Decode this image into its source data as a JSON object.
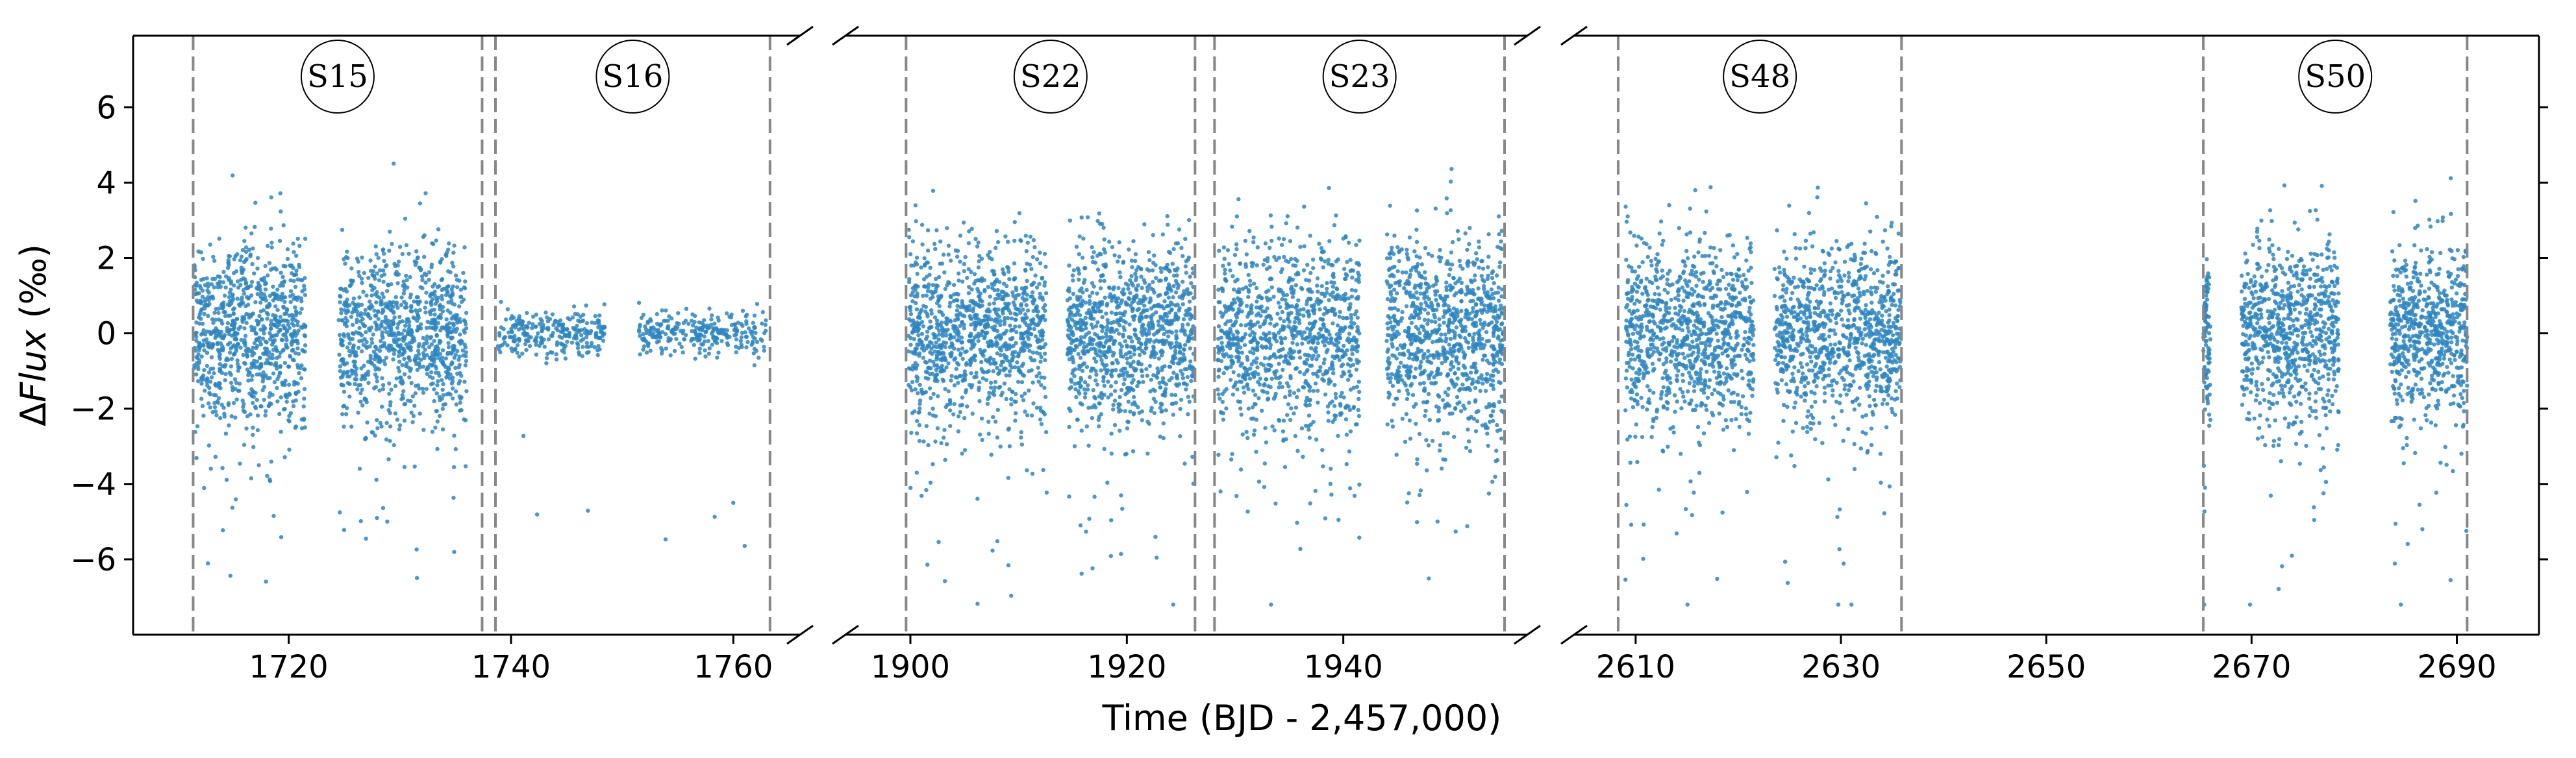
{
  "chart_data": {
    "type": "scatter",
    "title": "",
    "xlabel": "Time (BJD - 2,457,000)",
    "ylabel_prefix": "Δ",
    "ylabel_italic": "Flux",
    "ylabel_suffix": " (‰)",
    "ylim": [
      -8,
      7.9
    ],
    "y_ticks": [
      -6,
      -4,
      -2,
      0,
      2,
      4,
      6
    ],
    "y_tick_labels": [
      "−6",
      "−4",
      "−2",
      "0",
      "2",
      "4",
      "6"
    ],
    "grid": false,
    "legend": "none",
    "marker_color": "#2e86c1",
    "separator_color": "#888888",
    "panels": [
      {
        "xlim": [
          1706,
          1766
        ],
        "x_ticks": [
          1720,
          1740,
          1760
        ],
        "x_tick_labels": [
          "1720",
          "1740",
          "1760"
        ],
        "sectors": [
          {
            "label": "S15",
            "start": 1711.4,
            "end": 1737.4
          },
          {
            "label": "S16",
            "start": 1738.6,
            "end": 1763.3
          }
        ],
        "segments": [
          {
            "x": [
              1711.5,
              1721.5
            ],
            "spread": 1.2,
            "count": 900
          },
          {
            "x": [
              1724.5,
              1736.0
            ],
            "spread": 1.2,
            "count": 950
          },
          {
            "x": [
              1738.8,
              1748.5
            ],
            "spread": 0.3,
            "count": 260
          },
          {
            "x": [
              1751.5,
              1763.0
            ],
            "spread": 0.3,
            "count": 280
          }
        ]
      },
      {
        "xlim": [
          1894,
          1957
        ],
        "x_ticks": [
          1900,
          1920,
          1940
        ],
        "x_tick_labels": [
          "1900",
          "1920",
          "1940"
        ],
        "sectors": [
          {
            "label": "S22",
            "start": 1899.6,
            "end": 1926.3
          },
          {
            "label": "S23",
            "start": 1928.1,
            "end": 1954.9
          }
        ],
        "segments": [
          {
            "x": [
              1899.8,
              1912.6
            ],
            "spread": 1.2,
            "count": 1050
          },
          {
            "x": [
              1914.5,
              1926.2
            ],
            "spread": 1.2,
            "count": 1000
          },
          {
            "x": [
              1928.4,
              1941.5
            ],
            "spread": 1.3,
            "count": 1000
          },
          {
            "x": [
              1944.0,
              1954.8
            ],
            "spread": 1.3,
            "count": 950
          }
        ]
      },
      {
        "xlim": [
          2604,
          2698
        ],
        "x_ticks": [
          2610,
          2630,
          2650,
          2670,
          2690
        ],
        "x_tick_labels": [
          "2610",
          "2630",
          "2650",
          "2670",
          "2690"
        ],
        "sectors": [
          {
            "label": "S48",
            "start": 2608.3,
            "end": 2635.9
          },
          {
            "label": "S50",
            "start": 2665.3,
            "end": 2691.0
          }
        ],
        "segments": [
          {
            "x": [
              2609.0,
              2621.5
            ],
            "spread": 1.2,
            "count": 950
          },
          {
            "x": [
              2623.5,
              2635.8
            ],
            "spread": 1.2,
            "count": 950
          },
          {
            "x": [
              2665.3,
              2666.0
            ],
            "spread": 1.2,
            "count": 90
          },
          {
            "x": [
              2669.0,
              2678.5
            ],
            "spread": 1.2,
            "count": 780
          },
          {
            "x": [
              2683.5,
              2691.0
            ],
            "spread": 1.2,
            "count": 650
          }
        ]
      }
    ]
  }
}
